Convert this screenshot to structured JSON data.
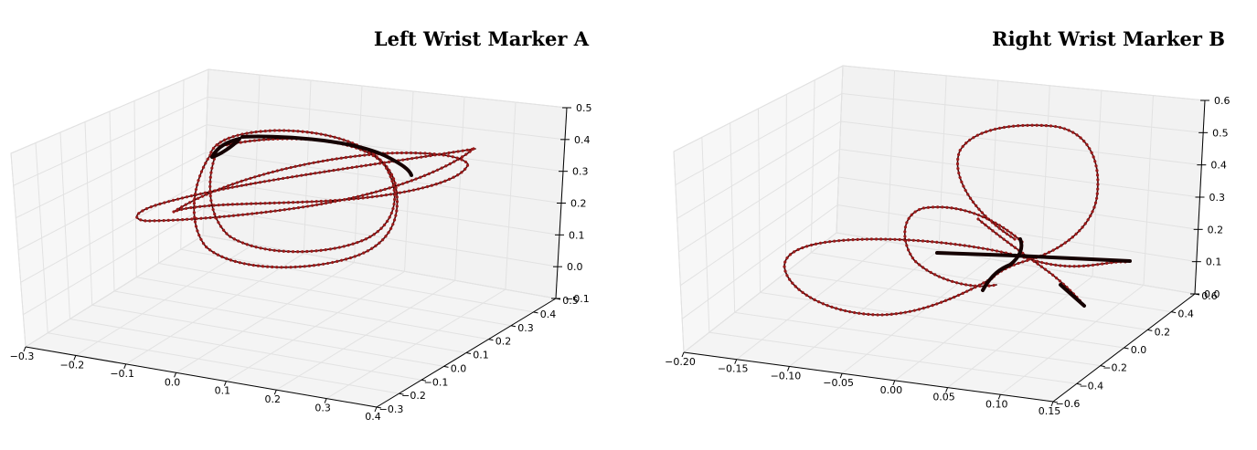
{
  "chart_data": [
    {
      "type": "line3d",
      "title": "Left Wrist Marker A",
      "x_ticks": [
        "−0.3",
        "−0.2",
        "−0.1",
        "0.0",
        "0.1",
        "0.2",
        "0.3",
        "0.4"
      ],
      "y_ticks": [
        "−0.3",
        "−0.2",
        "−0.1",
        "0.0",
        "0.1",
        "0.2",
        "0.3",
        "0.4",
        "0.5"
      ],
      "z_ticks": [
        "−0.1",
        "0.0",
        "0.1",
        "0.2",
        "0.3",
        "0.4",
        "0.5"
      ],
      "xlim": [
        -0.3,
        0.4
      ],
      "ylim": [
        -0.3,
        0.5
      ],
      "zlim": [
        -0.1,
        0.5
      ],
      "grid": true,
      "line_color": "#3a0505",
      "marker_color": "#9b1a1a",
      "marker": "star"
    },
    {
      "type": "line3d",
      "title": "Right Wrist Marker B",
      "x_ticks": [
        "−0.20",
        "−0.15",
        "−0.10",
        "−0.05",
        "0.00",
        "0.05",
        "0.10",
        "0.15"
      ],
      "y_ticks": [
        "−0.6",
        "−0.4",
        "−0.2",
        "0.0",
        "0.2",
        "0.4",
        "0.6"
      ],
      "z_ticks": [
        "0.0",
        "0.1",
        "0.2",
        "0.3",
        "0.4",
        "0.5",
        "0.6"
      ],
      "xlim": [
        -0.2,
        0.15
      ],
      "ylim": [
        -0.6,
        0.6
      ],
      "zlim": [
        0.0,
        0.6
      ],
      "grid": true,
      "line_color": "#3a0505",
      "marker_color": "#9b1a1a",
      "marker": "star"
    }
  ]
}
